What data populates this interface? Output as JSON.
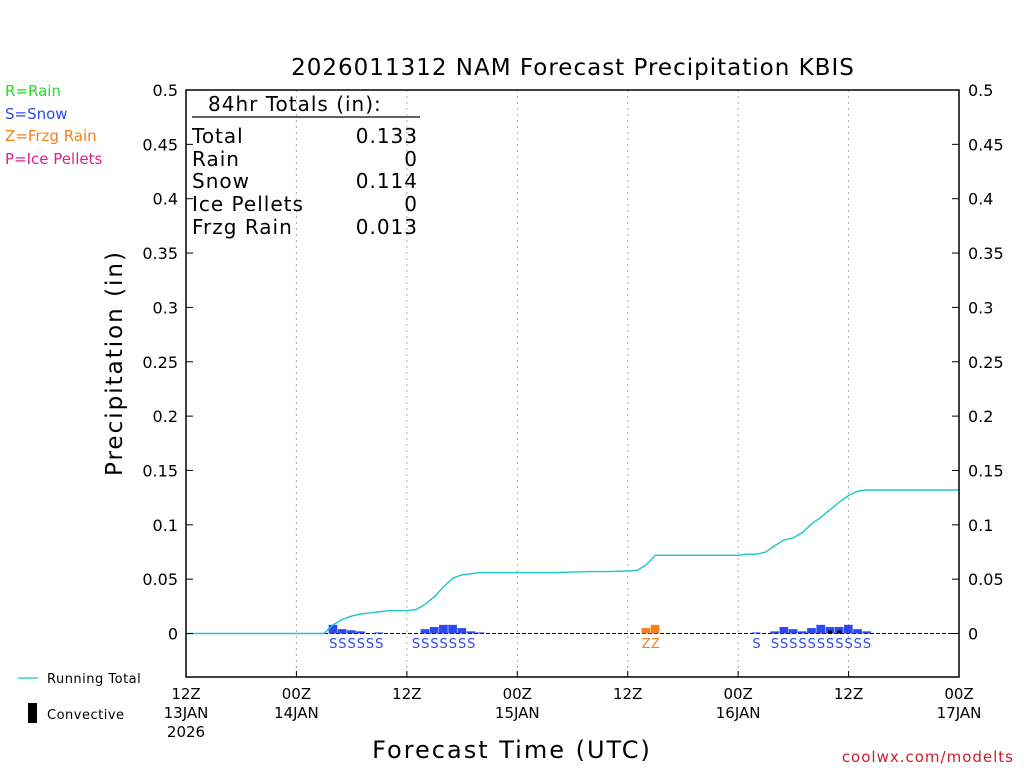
{
  "chart_data": {
    "type": "bar+line",
    "title": "2026011312 NAM Forecast Precipitation KBIS",
    "xlabel": "Forecast Time (UTC)",
    "ylabel": "Precipitation (in)",
    "ylim": [
      -0.04,
      0.5
    ],
    "yticks": [
      "0",
      "0.05",
      "0.1",
      "0.15",
      "0.2",
      "0.25",
      "0.3",
      "0.35",
      "0.4",
      "0.45",
      "0.5"
    ],
    "ytick_values": [
      0,
      0.05,
      0.1,
      0.15,
      0.2,
      0.25,
      0.3,
      0.35,
      0.4,
      0.45,
      0.5
    ],
    "xlim_hours": [
      0,
      84
    ],
    "xticks": [
      {
        "hour": 0,
        "line1": "12Z",
        "line2": "13JAN",
        "line3": "2026"
      },
      {
        "hour": 12,
        "line1": "00Z",
        "line2": "14JAN",
        "line3": ""
      },
      {
        "hour": 24,
        "line1": "12Z",
        "line2": "",
        "line3": ""
      },
      {
        "hour": 36,
        "line1": "00Z",
        "line2": "15JAN",
        "line3": ""
      },
      {
        "hour": 48,
        "line1": "12Z",
        "line2": "",
        "line3": ""
      },
      {
        "hour": 60,
        "line1": "00Z",
        "line2": "16JAN",
        "line3": ""
      },
      {
        "hour": 72,
        "line1": "12Z",
        "line2": "",
        "line3": ""
      },
      {
        "hour": 84,
        "line1": "00Z",
        "line2": "17JAN",
        "line3": ""
      }
    ],
    "legend_types": [
      {
        "text": "R=Rain",
        "color": "#22dd22"
      },
      {
        "text": "S=Snow",
        "color": "#2d49f0"
      },
      {
        "text": "Z=Frzg Rain",
        "color": "#f08020"
      },
      {
        "text": "P=Ice Pellets",
        "color": "#e0208c"
      }
    ],
    "legend_bottom": {
      "running_total": "Running Total",
      "convective": "Convective"
    },
    "totals_box": {
      "header": "84hr Totals (in):",
      "rows": [
        {
          "label": "Total",
          "value": "0.133"
        },
        {
          "label": "Rain",
          "value": "0"
        },
        {
          "label": "Snow",
          "value": "0.114"
        },
        {
          "label": "Ice Pellets",
          "value": "0"
        },
        {
          "label": "Frzg Rain",
          "value": "0.013"
        }
      ]
    },
    "running_total": [
      [
        0,
        0
      ],
      [
        15,
        0
      ],
      [
        16,
        0.008
      ],
      [
        17,
        0.013
      ],
      [
        18,
        0.016
      ],
      [
        19,
        0.018
      ],
      [
        20,
        0.019
      ],
      [
        21,
        0.02
      ],
      [
        22,
        0.021
      ],
      [
        23,
        0.021
      ],
      [
        24,
        0.021
      ],
      [
        25,
        0.022
      ],
      [
        26,
        0.027
      ],
      [
        27,
        0.034
      ],
      [
        28,
        0.043
      ],
      [
        29,
        0.051
      ],
      [
        30,
        0.054
      ],
      [
        31,
        0.055
      ],
      [
        32,
        0.056
      ],
      [
        33,
        0.056
      ],
      [
        36,
        0.056
      ],
      [
        40,
        0.056
      ],
      [
        44,
        0.057
      ],
      [
        46,
        0.057
      ],
      [
        49,
        0.058
      ],
      [
        50,
        0.063
      ],
      [
        51,
        0.072
      ],
      [
        52,
        0.072
      ],
      [
        60,
        0.072
      ],
      [
        61,
        0.073
      ],
      [
        62,
        0.073
      ],
      [
        63,
        0.075
      ],
      [
        64,
        0.081
      ],
      [
        65,
        0.086
      ],
      [
        66,
        0.088
      ],
      [
        67,
        0.093
      ],
      [
        68,
        0.101
      ],
      [
        69,
        0.107
      ],
      [
        70,
        0.114
      ],
      [
        71,
        0.121
      ],
      [
        72,
        0.127
      ],
      [
        73,
        0.131
      ],
      [
        74,
        0.132
      ],
      [
        75,
        0.132
      ],
      [
        84,
        0.132
      ]
    ],
    "precip_bars": [
      {
        "hour": 16,
        "value": 0.008,
        "type": "snow"
      },
      {
        "hour": 17,
        "value": 0.004,
        "type": "snow"
      },
      {
        "hour": 18,
        "value": 0.003,
        "type": "snow"
      },
      {
        "hour": 19,
        "value": 0.002,
        "type": "snow"
      },
      {
        "hour": 21,
        "value": 0.001,
        "type": "snow"
      },
      {
        "hour": 26,
        "value": 0.004,
        "type": "snow"
      },
      {
        "hour": 27,
        "value": 0.006,
        "type": "snow"
      },
      {
        "hour": 28,
        "value": 0.008,
        "type": "snow"
      },
      {
        "hour": 29,
        "value": 0.008,
        "type": "snow"
      },
      {
        "hour": 30,
        "value": 0.005,
        "type": "snow"
      },
      {
        "hour": 31,
        "value": 0.002,
        "type": "snow"
      },
      {
        "hour": 32,
        "value": 0.001,
        "type": "snow"
      },
      {
        "hour": 50,
        "value": 0.005,
        "type": "frzg"
      },
      {
        "hour": 51,
        "value": 0.008,
        "type": "frzg"
      },
      {
        "hour": 62,
        "value": 0.001,
        "type": "snow"
      },
      {
        "hour": 64,
        "value": 0.002,
        "type": "snow"
      },
      {
        "hour": 65,
        "value": 0.006,
        "type": "snow"
      },
      {
        "hour": 66,
        "value": 0.004,
        "type": "snow"
      },
      {
        "hour": 67,
        "value": 0.002,
        "type": "snow"
      },
      {
        "hour": 68,
        "value": 0.005,
        "type": "snow"
      },
      {
        "hour": 69,
        "value": 0.008,
        "type": "snow"
      },
      {
        "hour": 70,
        "value": 0.006,
        "type": "snow"
      },
      {
        "hour": 71,
        "value": 0.006,
        "type": "snow"
      },
      {
        "hour": 72,
        "value": 0.008,
        "type": "snow"
      },
      {
        "hour": 73,
        "value": 0.004,
        "type": "snow"
      },
      {
        "hour": 74,
        "value": 0.002,
        "type": "snow"
      }
    ],
    "convective_marks": [
      70,
      71
    ],
    "ptype_codes": [
      {
        "hour": 16,
        "text": "S",
        "type": "snow"
      },
      {
        "hour": 17,
        "text": "S",
        "type": "snow"
      },
      {
        "hour": 18,
        "text": "S",
        "type": "snow"
      },
      {
        "hour": 19,
        "text": "S",
        "type": "snow"
      },
      {
        "hour": 20,
        "text": "S",
        "type": "snow"
      },
      {
        "hour": 21,
        "text": "S",
        "type": "snow"
      },
      {
        "hour": 25,
        "text": "S",
        "type": "snow"
      },
      {
        "hour": 26,
        "text": "S",
        "type": "snow"
      },
      {
        "hour": 27,
        "text": "S",
        "type": "snow"
      },
      {
        "hour": 28,
        "text": "S",
        "type": "snow"
      },
      {
        "hour": 29,
        "text": "S",
        "type": "snow"
      },
      {
        "hour": 30,
        "text": "S",
        "type": "snow"
      },
      {
        "hour": 31,
        "text": "S",
        "type": "snow"
      },
      {
        "hour": 50,
        "text": "Z",
        "type": "frzg"
      },
      {
        "hour": 51,
        "text": "Z",
        "type": "frzg"
      },
      {
        "hour": 62,
        "text": "S",
        "type": "snow"
      },
      {
        "hour": 64,
        "text": "S",
        "type": "snow"
      },
      {
        "hour": 65,
        "text": "S",
        "type": "snow"
      },
      {
        "hour": 66,
        "text": "S",
        "type": "snow"
      },
      {
        "hour": 67,
        "text": "S",
        "type": "snow"
      },
      {
        "hour": 68,
        "text": "S",
        "type": "snow"
      },
      {
        "hour": 69,
        "text": "S",
        "type": "snow"
      },
      {
        "hour": 70,
        "text": "S",
        "type": "snow"
      },
      {
        "hour": 71,
        "text": "S",
        "type": "snow"
      },
      {
        "hour": 72,
        "text": "S",
        "type": "snow"
      },
      {
        "hour": 73,
        "text": "S",
        "type": "snow"
      },
      {
        "hour": 74,
        "text": "S",
        "type": "snow"
      }
    ],
    "colors": {
      "snow": "#2d49f0",
      "frzg": "#f08020",
      "running_total": "#19c8c8",
      "convective": "#000000",
      "grid": "#aaaaaa"
    },
    "watermark": "coolwx.com/modelts"
  }
}
